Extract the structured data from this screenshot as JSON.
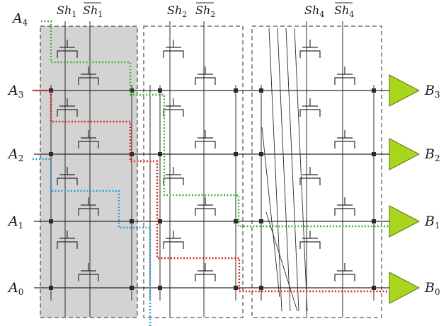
{
  "diagram": {
    "inputs": [
      {
        "id": "A4",
        "base": "A",
        "sub": "4",
        "color": "#3f9f2f"
      },
      {
        "id": "A3",
        "base": "A",
        "sub": "3"
      },
      {
        "id": "A2",
        "base": "A",
        "sub": "2"
      },
      {
        "id": "A1",
        "base": "A",
        "sub": "1"
      },
      {
        "id": "A0",
        "base": "A",
        "sub": "0"
      }
    ],
    "outputs": [
      {
        "id": "B3",
        "base": "B",
        "sub": "3"
      },
      {
        "id": "B2",
        "base": "B",
        "sub": "2"
      },
      {
        "id": "B1",
        "base": "B",
        "sub": "1"
      },
      {
        "id": "B0",
        "base": "B",
        "sub": "0"
      }
    ],
    "controls": [
      {
        "id": "Sh1",
        "base": "Sh",
        "sub": "1",
        "bar": false
      },
      {
        "id": "Sh1bar",
        "base": "Sh",
        "sub": "1",
        "bar": true
      },
      {
        "id": "Sh2",
        "base": "Sh",
        "sub": "2",
        "bar": false
      },
      {
        "id": "Sh2bar",
        "base": "Sh",
        "sub": "2",
        "bar": true
      },
      {
        "id": "Sh4",
        "base": "Sh",
        "sub": "4",
        "bar": false
      },
      {
        "id": "Sh4bar",
        "base": "Sh",
        "sub": "4",
        "bar": true
      }
    ],
    "colors": {
      "wire": "#2b2b2b",
      "stage_fill": "#d3d3d3",
      "buffer_fill": "#a9d51d",
      "path_green": "#3fb52f",
      "path_red": "#d81f1f",
      "path_blue": "#27a3d8",
      "input_label_A4": "#3f9f2f"
    }
  }
}
